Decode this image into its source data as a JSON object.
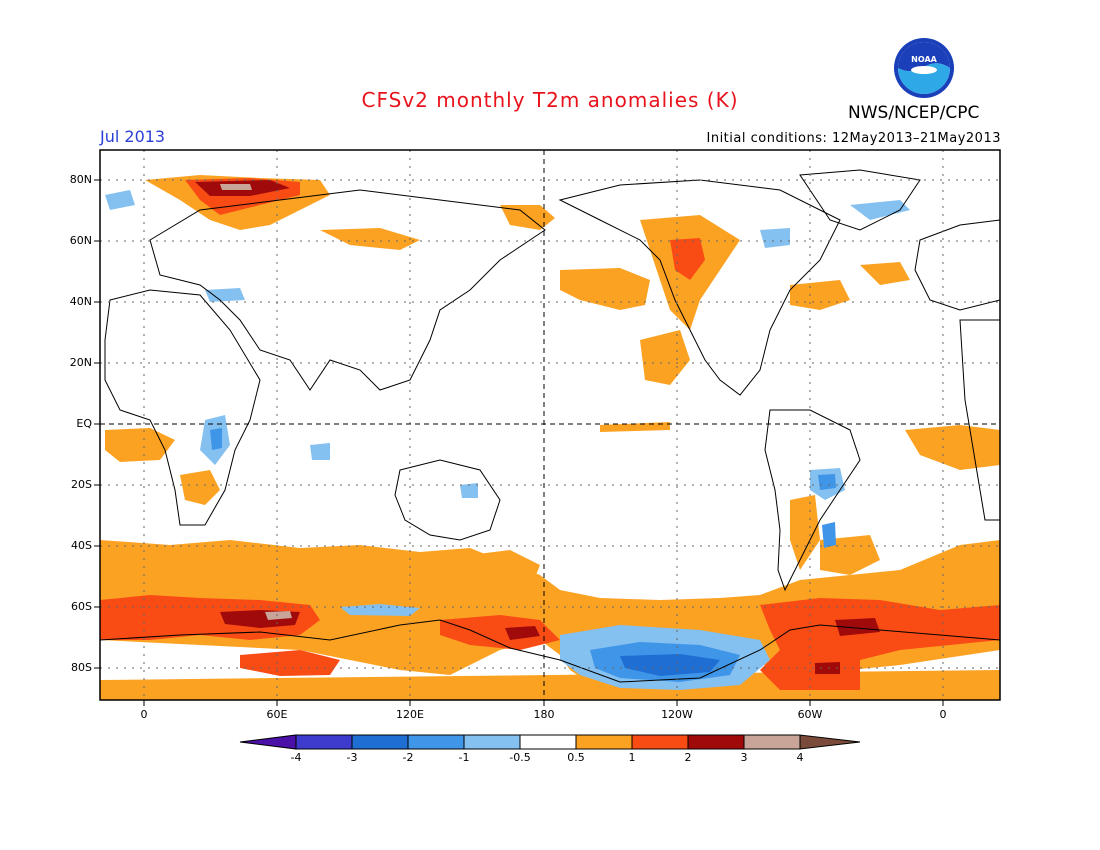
{
  "header": {
    "title": "CFSv2 monthly T2m anomalies (K)",
    "month": "Jul 2013",
    "initial_conditions": "Initial conditions: 12May2013–21May2013",
    "agency": "NWS/NCEP/CPC",
    "logo_text": "NOAA"
  },
  "map": {
    "lat_labels": [
      "80N",
      "60N",
      "40N",
      "20N",
      "EQ",
      "20S",
      "40S",
      "60S",
      "80S"
    ],
    "lon_labels": [
      "0",
      "60E",
      "120E",
      "180",
      "120W",
      "60W",
      "0"
    ]
  },
  "colorbar": {
    "tick_labels": [
      "-4",
      "-3",
      "-2",
      "-1",
      "-0.5",
      "0.5",
      "1",
      "2",
      "3",
      "4"
    ],
    "colors": [
      "#4a10a8",
      "#3d3ccc",
      "#1f6ed4",
      "#3f95e8",
      "#84c0f0",
      "#ffffff",
      "#fca222",
      "#f94c15",
      "#e81a0c",
      "#a10a0a",
      "#c9a499",
      "#7a4a3a"
    ]
  },
  "colors": {
    "warm_light": "#fca222",
    "warm_mid": "#f94c15",
    "warm_dark": "#a10a0a",
    "warm_extreme": "#c9a499",
    "cool_light": "#84c0f0",
    "cool_mid": "#3f95e8",
    "cool_dark": "#1f6ed4",
    "title": "#e8131c",
    "month": "#2a3fd6"
  }
}
